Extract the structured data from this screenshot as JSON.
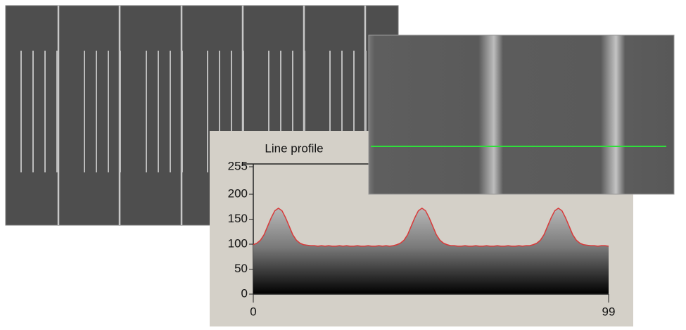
{
  "chart_data": {
    "type": "area",
    "title": "Line profile",
    "x": [
      0,
      1,
      2,
      3,
      4,
      5,
      6,
      7,
      8,
      9,
      10,
      11,
      12,
      13,
      14,
      15,
      16,
      17,
      18,
      19,
      20,
      21,
      22,
      23,
      24,
      25,
      26,
      27,
      28,
      29,
      30,
      31,
      32,
      33,
      34,
      35,
      36,
      37,
      38,
      39,
      40,
      41,
      42,
      43,
      44,
      45,
      46,
      47,
      48,
      49,
      50,
      51,
      52,
      53,
      54,
      55,
      56,
      57,
      58,
      59,
      60,
      61,
      62,
      63,
      64,
      65,
      66,
      67,
      68,
      69,
      70,
      71,
      72,
      73,
      74,
      75,
      76,
      77,
      78,
      79,
      80,
      81,
      82,
      83,
      84,
      85,
      86,
      87,
      88,
      89,
      90,
      91,
      92,
      93,
      94,
      95,
      96,
      97,
      98,
      99
    ],
    "values": [
      99,
      102,
      108,
      119,
      136,
      153,
      167,
      172,
      167,
      153,
      136,
      119,
      108,
      102,
      99,
      98,
      97,
      97,
      96,
      97,
      96,
      97,
      96,
      96,
      97,
      96,
      97,
      96,
      96,
      97,
      96,
      96,
      97,
      96,
      96,
      97,
      96,
      97,
      96,
      97,
      99,
      102,
      108,
      119,
      136,
      153,
      167,
      172,
      167,
      153,
      136,
      119,
      108,
      102,
      99,
      97,
      97,
      96,
      96,
      97,
      96,
      96,
      97,
      96,
      96,
      97,
      96,
      96,
      97,
      96,
      96,
      97,
      96,
      96,
      97,
      96,
      97,
      97,
      99,
      102,
      108,
      119,
      136,
      153,
      167,
      172,
      167,
      153,
      136,
      119,
      108,
      102,
      99,
      98,
      97,
      97,
      96,
      97,
      97,
      96
    ],
    "color": "#d83a3a",
    "xlim": [
      0,
      99
    ],
    "xticks": [
      0,
      99
    ],
    "ylim": [
      0,
      255
    ],
    "yticks": [
      0,
      50,
      100,
      150,
      200,
      255
    ]
  }
}
